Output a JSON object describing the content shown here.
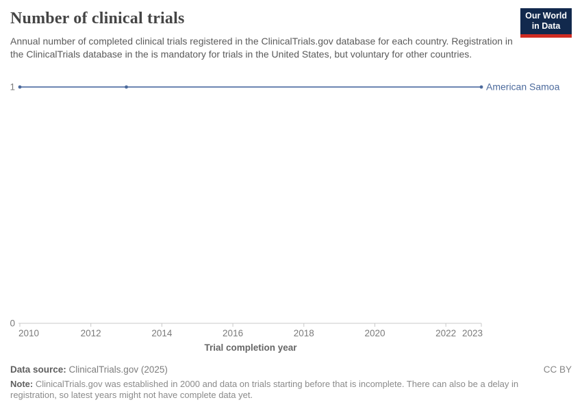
{
  "header": {
    "title": "Number of clinical trials",
    "subtitle": "Annual number of completed clinical trials registered in the ClinicalTrials.gov database for each country. Registration in the ClinicalTrials database in the is mandatory for trials in the United States, but voluntary for other countries.",
    "logo_line1": "Our World",
    "logo_line2": "in Data"
  },
  "chart_data": {
    "type": "line",
    "title": "Number of clinical trials",
    "xlabel": "Trial completion year",
    "ylabel": "",
    "xlim": [
      2010,
      2023
    ],
    "ylim": [
      0,
      1
    ],
    "x_ticks": [
      2010,
      2012,
      2014,
      2016,
      2018,
      2020,
      2022,
      2023
    ],
    "y_ticks": [
      0,
      1
    ],
    "grid": false,
    "legend_position": "end-of-line",
    "series": [
      {
        "name": "American Samoa",
        "color": "#4c6a9c",
        "line_color": "#6c85b2",
        "x": [
          2010,
          2013,
          2023
        ],
        "values": [
          1,
          1,
          1
        ],
        "markers": true
      }
    ]
  },
  "footer": {
    "data_source_label": "Data source:",
    "data_source_value": "ClinicalTrials.gov (2025)",
    "license": "CC BY",
    "note_label": "Note:",
    "note_text": "ClinicalTrials.gov was established in 2000 and data on trials starting before that is incomplete. There can also be a delay in registration, so latest years might not have complete data yet."
  },
  "colors": {
    "accent_blue": "#4c6a9c",
    "logo_bg": "#12294d",
    "logo_bar": "#d02c22",
    "axis": "#c8c8c8",
    "gridline": "#e8e8e8",
    "tick_text": "#7a7a7a",
    "axis_title": "#666666"
  }
}
